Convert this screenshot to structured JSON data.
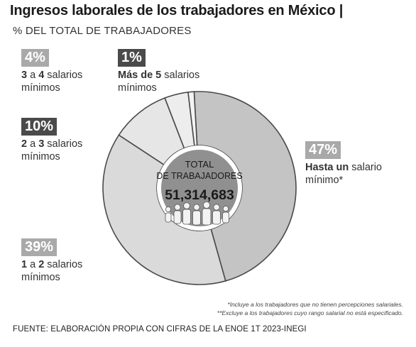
{
  "header": {
    "title": "Ingresos laborales de los trabajadores en México |",
    "subtitle": "% DEL TOTAL DE TRABAJADORES"
  },
  "chart_data": {
    "type": "pie",
    "donut": true,
    "center": {
      "line1": "TOTAL",
      "line2": "DE TRABAJADORES",
      "total": "51,314,683"
    },
    "slices": [
      {
        "pct_label": "47%",
        "value": 47,
        "bold": "Hasta un",
        "rest": " salario",
        "line2": "mínimo*",
        "color": "#c4c4c4"
      },
      {
        "pct_label": "39%",
        "value": 39,
        "bold": "1",
        "rest": " a ",
        "bold2": "2",
        "rest2": " salarios",
        "line2": "mínimos",
        "color": "#dadada"
      },
      {
        "pct_label": "10%",
        "value": 10,
        "bold": "2",
        "rest": " a ",
        "bold2": "3",
        "rest2": " salarios",
        "line2": "mínimos",
        "color": "#e6e6e6"
      },
      {
        "pct_label": "4%",
        "value": 4,
        "bold": "3",
        "rest": " a ",
        "bold2": "4",
        "rest2": " salarios",
        "line2": "mínimos",
        "color": "#ededed"
      },
      {
        "pct_label": "1%",
        "value": 1,
        "bold": "Más de 5",
        "rest": " salarios",
        "line2": "mínimos",
        "color": "#f3f3f3"
      }
    ]
  },
  "notes": {
    "note1": "*Incluye a los trabajadores que no tienen percepciones salariales.",
    "note2": "**Excluye a los trabajadores cuyo rango salarial no está especificado."
  },
  "footer": {
    "source": "FUENTE: ELABORACIÓN PROPIA CON CIFRAS DE LA ENOE 1T 2023-INEGI"
  }
}
